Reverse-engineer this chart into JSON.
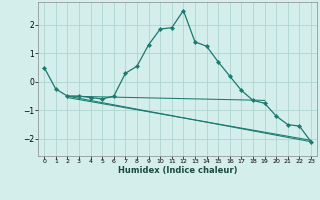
{
  "xlabel": "Humidex (Indice chaleur)",
  "background_color": "#d4eeec",
  "grid_color": "#aed4d0",
  "line_color": "#1a7a6e",
  "xlim": [
    -0.5,
    23.5
  ],
  "ylim": [
    -2.6,
    2.8
  ],
  "xticks": [
    0,
    1,
    2,
    3,
    4,
    5,
    6,
    7,
    8,
    9,
    10,
    11,
    12,
    13,
    14,
    15,
    16,
    17,
    18,
    19,
    20,
    21,
    22,
    23
  ],
  "yticks": [
    -2,
    -1,
    0,
    1,
    2
  ],
  "main_series": {
    "x": [
      0,
      1,
      2,
      3,
      4,
      5,
      6,
      7,
      8,
      9,
      10,
      11,
      12,
      13,
      14,
      15,
      16,
      17,
      18,
      19,
      20,
      21,
      22,
      23
    ],
    "y": [
      0.5,
      -0.25,
      -0.5,
      -0.5,
      -0.55,
      -0.6,
      -0.5,
      0.3,
      0.55,
      1.3,
      1.85,
      1.9,
      2.5,
      1.4,
      1.25,
      0.7,
      0.2,
      -0.3,
      -0.65,
      -0.75,
      -1.2,
      -1.5,
      -1.55,
      -2.1
    ]
  },
  "extra_series": [
    {
      "x": [
        2,
        19
      ],
      "y": [
        -0.5,
        -0.65
      ]
    },
    {
      "x": [
        2,
        23
      ],
      "y": [
        -0.5,
        -2.1
      ]
    },
    {
      "x": [
        2,
        23
      ],
      "y": [
        -0.55,
        -2.05
      ]
    }
  ]
}
